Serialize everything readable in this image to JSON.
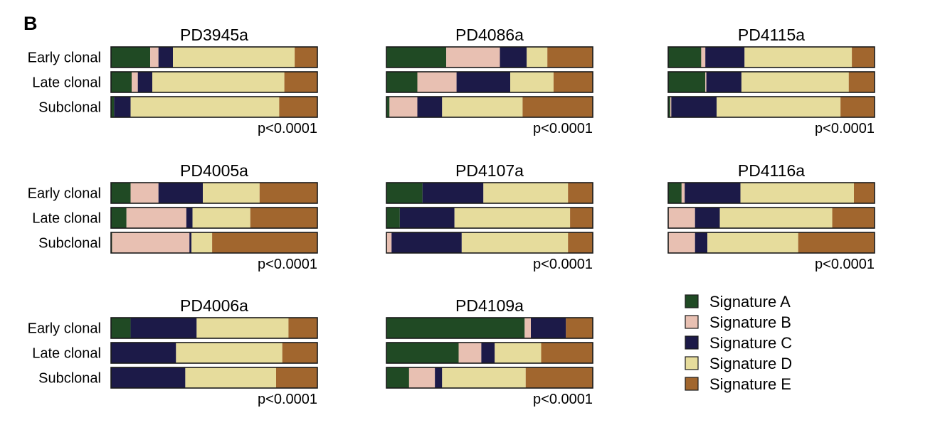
{
  "panel_label": "B",
  "colors": {
    "Signature A": "#204a24",
    "Signature B": "#e8c0b2",
    "Signature C": "#1c1a48",
    "Signature D": "#e6dc9c",
    "Signature E": "#a1662e",
    "outline": "#1a1a1a"
  },
  "row_labels": [
    "Early clonal",
    "Late clonal",
    "Subclonal"
  ],
  "legend": {
    "placement": "bottom-right",
    "entries": [
      "Signature A",
      "Signature B",
      "Signature C",
      "Signature D",
      "Signature E"
    ]
  },
  "chart_data": [
    {
      "type": "bar",
      "stacked": "normalized",
      "orientation": "horizontal",
      "title": "PD3945a",
      "pvalue": "p<0.0001",
      "categories": [
        "Early clonal",
        "Late clonal",
        "Subclonal"
      ],
      "series": [
        {
          "name": "Signature A",
          "values": [
            19,
            10,
            1.5
          ]
        },
        {
          "name": "Signature B",
          "values": [
            4,
            3,
            0
          ]
        },
        {
          "name": "Signature C",
          "values": [
            7,
            7,
            8
          ]
        },
        {
          "name": "Signature D",
          "values": [
            59,
            64,
            72
          ]
        },
        {
          "name": "Signature E",
          "values": [
            11,
            16,
            18.5
          ]
        }
      ]
    },
    {
      "type": "bar",
      "stacked": "normalized",
      "orientation": "horizontal",
      "title": "PD4086a",
      "pvalue": "p<0.0001",
      "categories": [
        "Early clonal",
        "Late clonal",
        "Subclonal"
      ],
      "series": [
        {
          "name": "Signature A",
          "values": [
            29,
            15,
            1.5
          ]
        },
        {
          "name": "Signature B",
          "values": [
            26,
            19,
            13.5
          ]
        },
        {
          "name": "Signature C",
          "values": [
            13,
            26,
            12
          ]
        },
        {
          "name": "Signature D",
          "values": [
            10,
            21,
            39
          ]
        },
        {
          "name": "Signature E",
          "values": [
            22,
            19,
            34
          ]
        }
      ]
    },
    {
      "type": "bar",
      "stacked": "normalized",
      "orientation": "horizontal",
      "title": "PD4115a",
      "pvalue": "p<0.0001",
      "categories": [
        "Early clonal",
        "Late clonal",
        "Subclonal"
      ],
      "series": [
        {
          "name": "Signature A",
          "values": [
            16,
            18,
            1
          ]
        },
        {
          "name": "Signature B",
          "values": [
            2,
            0.5,
            0.5
          ]
        },
        {
          "name": "Signature C",
          "values": [
            19,
            17,
            22
          ]
        },
        {
          "name": "Signature D",
          "values": [
            52,
            52,
            60
          ]
        },
        {
          "name": "Signature E",
          "values": [
            11,
            12.5,
            16.5
          ]
        }
      ]
    },
    {
      "type": "bar",
      "stacked": "normalized",
      "orientation": "horizontal",
      "title": "PD4005a",
      "pvalue": "p<0.0001",
      "categories": [
        "Early clonal",
        "Late clonal",
        "Subclonal"
      ],
      "series": [
        {
          "name": "Signature A",
          "values": [
            9.5,
            7.5,
            0.5
          ]
        },
        {
          "name": "Signature B",
          "values": [
            13.5,
            29,
            37.5
          ]
        },
        {
          "name": "Signature C",
          "values": [
            21.5,
            3,
            1
          ]
        },
        {
          "name": "Signature D",
          "values": [
            27.5,
            28,
            10
          ]
        },
        {
          "name": "Signature E",
          "values": [
            28,
            32.5,
            51
          ]
        }
      ]
    },
    {
      "type": "bar",
      "stacked": "normalized",
      "orientation": "horizontal",
      "title": "PD4107a",
      "pvalue": "p<0.0001",
      "categories": [
        "Early clonal",
        "Late clonal",
        "Subclonal"
      ],
      "series": [
        {
          "name": "Signature A",
          "values": [
            17.5,
            6.5,
            0
          ]
        },
        {
          "name": "Signature B",
          "values": [
            0,
            0,
            2.5
          ]
        },
        {
          "name": "Signature C",
          "values": [
            29.5,
            26.5,
            34
          ]
        },
        {
          "name": "Signature D",
          "values": [
            41,
            56,
            51.5
          ]
        },
        {
          "name": "Signature E",
          "values": [
            12,
            11,
            12
          ]
        }
      ]
    },
    {
      "type": "bar",
      "stacked": "normalized",
      "orientation": "horizontal",
      "title": "PD4116a",
      "pvalue": "p<0.0001",
      "categories": [
        "Early clonal",
        "Late clonal",
        "Subclonal"
      ],
      "series": [
        {
          "name": "Signature A",
          "values": [
            6.5,
            0,
            0
          ]
        },
        {
          "name": "Signature B",
          "values": [
            1.5,
            13,
            13
          ]
        },
        {
          "name": "Signature C",
          "values": [
            27,
            12,
            6
          ]
        },
        {
          "name": "Signature D",
          "values": [
            55,
            54.5,
            44
          ]
        },
        {
          "name": "Signature E",
          "values": [
            10,
            20.5,
            37
          ]
        }
      ]
    },
    {
      "type": "bar",
      "stacked": "normalized",
      "orientation": "horizontal",
      "title": "PD4006a",
      "pvalue": "p<0.0001",
      "categories": [
        "Early clonal",
        "Late clonal",
        "Subclonal"
      ],
      "series": [
        {
          "name": "Signature A",
          "values": [
            9.5,
            0,
            0
          ]
        },
        {
          "name": "Signature B",
          "values": [
            0,
            0,
            0
          ]
        },
        {
          "name": "Signature C",
          "values": [
            32,
            31.5,
            36
          ]
        },
        {
          "name": "Signature D",
          "values": [
            44.5,
            51.5,
            44
          ]
        },
        {
          "name": "Signature E",
          "values": [
            14,
            17,
            20
          ]
        }
      ]
    },
    {
      "type": "bar",
      "stacked": "normalized",
      "orientation": "horizontal",
      "title": "PD4109a",
      "pvalue": "p<0.0001",
      "categories": [
        "Early clonal",
        "Late clonal",
        "Subclonal"
      ],
      "series": [
        {
          "name": "Signature A",
          "values": [
            67,
            35,
            11
          ]
        },
        {
          "name": "Signature B",
          "values": [
            3,
            11,
            12.5
          ]
        },
        {
          "name": "Signature C",
          "values": [
            17,
            6.5,
            3.5
          ]
        },
        {
          "name": "Signature D",
          "values": [
            0,
            22.5,
            40.5
          ]
        },
        {
          "name": "Signature E",
          "values": [
            13,
            25,
            32.5
          ]
        }
      ]
    }
  ]
}
